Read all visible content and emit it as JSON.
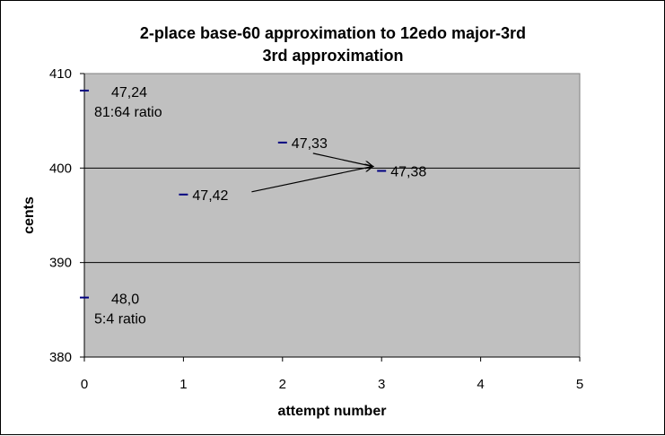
{
  "chart_data": {
    "type": "scatter",
    "title": "2-place base-60 approximation to 12edo major-3rd",
    "subtitle": "3rd approximation",
    "xlabel": "attempt number",
    "ylabel": "cents",
    "xlim": [
      0,
      5
    ],
    "ylim": [
      380,
      410
    ],
    "x_ticks": [
      "0",
      "1",
      "2",
      "3",
      "4",
      "5"
    ],
    "y_ticks": [
      "380",
      "390",
      "400",
      "410"
    ],
    "grid": "horizontal major gridlines",
    "plot_background": "#c0c0c0",
    "marker_color": "#000080",
    "series": [
      {
        "points": [
          {
            "x": 0,
            "y": 408.2,
            "label": "47,24",
            "note": "81:64 ratio"
          },
          {
            "x": 0,
            "y": 386.3,
            "label": "48,0",
            "note": "5:4 ratio"
          },
          {
            "x": 1,
            "y": 397.2,
            "label": "47,42"
          },
          {
            "x": 2,
            "y": 402.7,
            "label": "47,33"
          },
          {
            "x": 3,
            "y": 399.7,
            "label": "47,38"
          }
        ]
      }
    ],
    "arrows": [
      {
        "from": 3,
        "to": 4
      },
      {
        "from": 2,
        "to": 4
      }
    ]
  }
}
